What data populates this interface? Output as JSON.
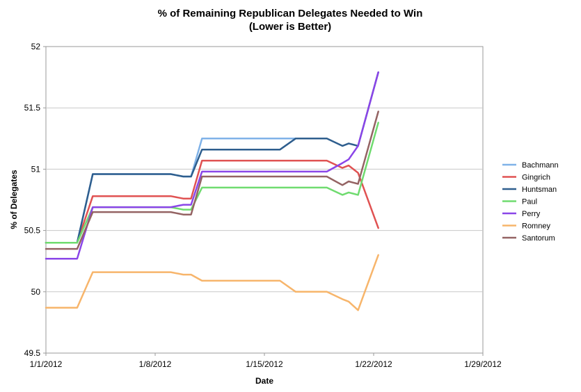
{
  "chart_data": {
    "type": "line",
    "title": "% of Remaining Republican Delegates Needed to Win",
    "subtitle": "(Lower is Better)",
    "xlabel": "Date",
    "ylabel": "% of Delegates",
    "xlim": [
      "2012-01-01",
      "2012-01-29"
    ],
    "ylim": [
      49.5,
      52
    ],
    "x_ticks": [
      "1/1/2012",
      "1/8/2012",
      "1/15/2012",
      "1/22/2012",
      "1/29/2012"
    ],
    "y_ticks": [
      "49.5",
      "50",
      "50.5",
      "51",
      "51.5",
      "52"
    ],
    "grid": "horizontal",
    "legend_position": "right",
    "series": [
      {
        "name": "Bachmann",
        "color": "#7fb2e8",
        "points": [
          [
            "2012-01-01",
            50.4
          ],
          [
            "2012-01-03",
            50.4
          ],
          [
            "2012-01-04",
            50.96
          ],
          [
            "2012-01-09",
            50.96
          ],
          [
            "2012-01-09.8",
            50.94
          ],
          [
            "2012-01-10.3",
            50.94
          ],
          [
            "2012-01-11",
            51.25
          ],
          [
            "2012-01-17",
            51.25
          ],
          [
            "2012-01-18",
            51.25
          ]
        ]
      },
      {
        "name": "Gingrich",
        "color": "#e05252",
        "points": [
          [
            "2012-01-01",
            50.4
          ],
          [
            "2012-01-03",
            50.4
          ],
          [
            "2012-01-04",
            50.78
          ],
          [
            "2012-01-09",
            50.78
          ],
          [
            "2012-01-09.8",
            50.76
          ],
          [
            "2012-01-10.3",
            50.76
          ],
          [
            "2012-01-11",
            51.07
          ],
          [
            "2012-01-19",
            51.07
          ],
          [
            "2012-01-20",
            51.01
          ],
          [
            "2012-01-20.4",
            51.03
          ],
          [
            "2012-01-21",
            50.97
          ],
          [
            "2012-01-22.3",
            50.52
          ]
        ]
      },
      {
        "name": "Huntsman",
        "color": "#2e5e8e",
        "points": [
          [
            "2012-01-01",
            50.4
          ],
          [
            "2012-01-03",
            50.4
          ],
          [
            "2012-01-04",
            50.96
          ],
          [
            "2012-01-09",
            50.96
          ],
          [
            "2012-01-09.8",
            50.94
          ],
          [
            "2012-01-10.3",
            50.94
          ],
          [
            "2012-01-11",
            51.16
          ],
          [
            "2012-01-16",
            51.16
          ],
          [
            "2012-01-17",
            51.25
          ],
          [
            "2012-01-19",
            51.25
          ],
          [
            "2012-01-20",
            51.19
          ],
          [
            "2012-01-20.4",
            51.21
          ],
          [
            "2012-01-21",
            51.19
          ],
          [
            "2012-01-22.3",
            51.79
          ]
        ]
      },
      {
        "name": "Paul",
        "color": "#6fdb6f",
        "points": [
          [
            "2012-01-01",
            50.4
          ],
          [
            "2012-01-03",
            50.4
          ],
          [
            "2012-01-04",
            50.69
          ],
          [
            "2012-01-09",
            50.69
          ],
          [
            "2012-01-09.8",
            50.67
          ],
          [
            "2012-01-10.3",
            50.67
          ],
          [
            "2012-01-11",
            50.85
          ],
          [
            "2012-01-19",
            50.85
          ],
          [
            "2012-01-20",
            50.79
          ],
          [
            "2012-01-20.4",
            50.81
          ],
          [
            "2012-01-21",
            50.79
          ],
          [
            "2012-01-22.3",
            51.38
          ]
        ]
      },
      {
        "name": "Perry",
        "color": "#8a45e8",
        "points": [
          [
            "2012-01-01",
            50.27
          ],
          [
            "2012-01-03",
            50.27
          ],
          [
            "2012-01-04",
            50.69
          ],
          [
            "2012-01-09",
            50.69
          ],
          [
            "2012-01-09.8",
            50.71
          ],
          [
            "2012-01-10.3",
            50.71
          ],
          [
            "2012-01-11",
            50.98
          ],
          [
            "2012-01-19",
            50.98
          ],
          [
            "2012-01-20",
            51.05
          ],
          [
            "2012-01-20.4",
            51.08
          ],
          [
            "2012-01-21",
            51.19
          ],
          [
            "2012-01-22.3",
            51.79
          ]
        ]
      },
      {
        "name": "Romney",
        "color": "#f7b56b",
        "points": [
          [
            "2012-01-01",
            49.87
          ],
          [
            "2012-01-03",
            49.87
          ],
          [
            "2012-01-04",
            50.16
          ],
          [
            "2012-01-09",
            50.16
          ],
          [
            "2012-01-09.8",
            50.14
          ],
          [
            "2012-01-10.3",
            50.14
          ],
          [
            "2012-01-11",
            50.09
          ],
          [
            "2012-01-16",
            50.09
          ],
          [
            "2012-01-17",
            50.0
          ],
          [
            "2012-01-19",
            50.0
          ],
          [
            "2012-01-20",
            49.94
          ],
          [
            "2012-01-20.4",
            49.92
          ],
          [
            "2012-01-21",
            49.85
          ],
          [
            "2012-01-22.3",
            50.3
          ]
        ]
      },
      {
        "name": "Santorum",
        "color": "#946363",
        "points": [
          [
            "2012-01-01",
            50.35
          ],
          [
            "2012-01-03",
            50.35
          ],
          [
            "2012-01-04",
            50.65
          ],
          [
            "2012-01-09",
            50.65
          ],
          [
            "2012-01-09.8",
            50.63
          ],
          [
            "2012-01-10.3",
            50.63
          ],
          [
            "2012-01-11",
            50.94
          ],
          [
            "2012-01-19",
            50.94
          ],
          [
            "2012-01-20",
            50.87
          ],
          [
            "2012-01-20.4",
            50.9
          ],
          [
            "2012-01-21",
            50.88
          ],
          [
            "2012-01-22.3",
            51.47
          ]
        ]
      }
    ]
  }
}
